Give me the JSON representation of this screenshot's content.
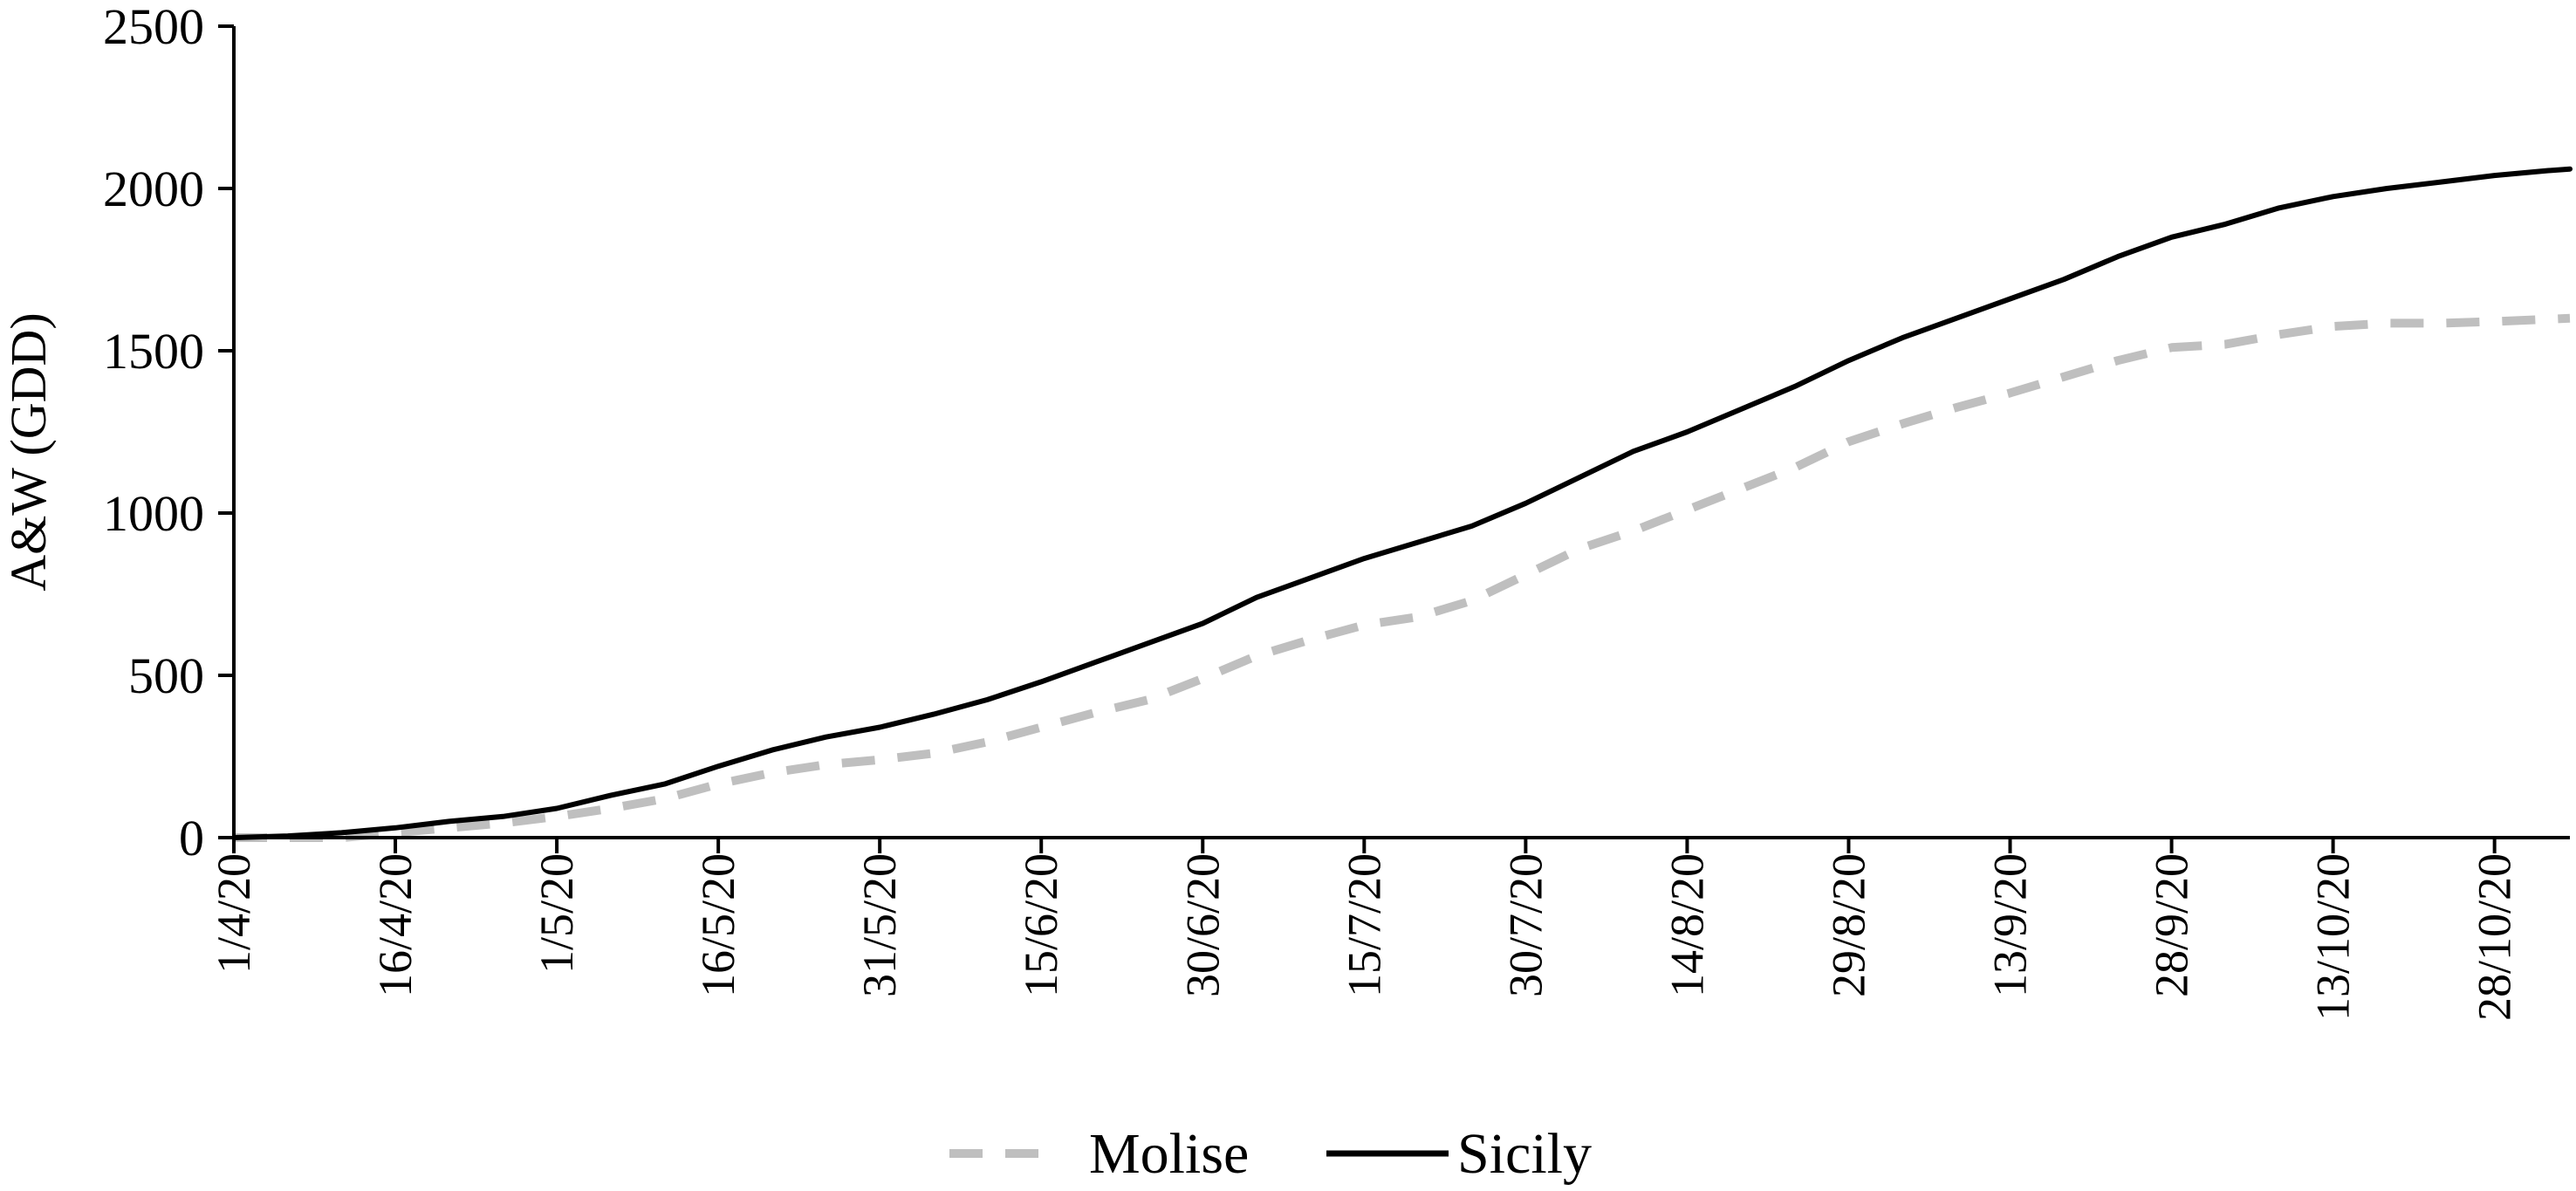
{
  "chart_data": {
    "type": "line",
    "title": "",
    "xlabel": "",
    "ylabel": "A&W (GDD)",
    "ylim": [
      0,
      2500
    ],
    "yticks": [
      "0",
      "500",
      "1000",
      "1500",
      "2000",
      "2500"
    ],
    "x_start": "1/4/20",
    "x_end": "4/11/20",
    "xticks": [
      "1/4/20",
      "16/4/20",
      "1/5/20",
      "16/5/20",
      "31/5/20",
      "15/6/20",
      "30/6/20",
      "15/7/20",
      "30/7/20",
      "14/8/20",
      "29/8/20",
      "13/9/20",
      "28/9/20",
      "13/10/20",
      "28/10/20"
    ],
    "grid": false,
    "legend_position": "bottom",
    "series": [
      {
        "name": "Molise",
        "style": "dashed",
        "color": "#bfbfbf",
        "x": [
          "1/4/20",
          "11/4/20",
          "16/4/20",
          "21/4/20",
          "26/4/20",
          "1/5/20",
          "6/5/20",
          "11/5/20",
          "16/5/20",
          "21/5/20",
          "26/5/20",
          "31/5/20",
          "5/6/20",
          "10/6/20",
          "15/6/20",
          "20/6/20",
          "25/6/20",
          "30/6/20",
          "5/7/20",
          "10/7/20",
          "15/7/20",
          "20/7/20",
          "25/7/20",
          "30/7/20",
          "4/8/20",
          "9/8/20",
          "14/8/20",
          "19/8/20",
          "24/8/20",
          "29/8/20",
          "3/9/20",
          "8/9/20",
          "13/9/20",
          "18/9/20",
          "23/9/20",
          "28/9/20",
          "3/10/20",
          "8/10/20",
          "13/10/20",
          "18/10/20",
          "23/10/20",
          "28/10/20",
          "2/11/20",
          "4/11/20"
        ],
        "y": [
          0,
          0,
          15,
          30,
          45,
          65,
          90,
          120,
          165,
          200,
          225,
          240,
          260,
          295,
          340,
          385,
          425,
          490,
          560,
          610,
          655,
          680,
          730,
          810,
          890,
          945,
          1010,
          1075,
          1140,
          1220,
          1275,
          1325,
          1370,
          1420,
          1470,
          1510,
          1520,
          1550,
          1575,
          1585,
          1585,
          1590,
          1597,
          1600
        ]
      },
      {
        "name": "Sicily",
        "style": "solid",
        "color": "#000000",
        "x": [
          "1/4/20",
          "6/4/20",
          "11/4/20",
          "16/4/20",
          "21/4/20",
          "26/4/20",
          "1/5/20",
          "6/5/20",
          "11/5/20",
          "16/5/20",
          "21/5/20",
          "26/5/20",
          "31/5/20",
          "5/6/20",
          "10/6/20",
          "15/6/20",
          "20/6/20",
          "25/6/20",
          "30/6/20",
          "5/7/20",
          "10/7/20",
          "15/7/20",
          "20/7/20",
          "25/7/20",
          "30/7/20",
          "4/8/20",
          "9/8/20",
          "14/8/20",
          "19/8/20",
          "24/8/20",
          "29/8/20",
          "3/9/20",
          "8/9/20",
          "13/9/20",
          "18/9/20",
          "23/9/20",
          "28/9/20",
          "3/10/20",
          "8/10/20",
          "13/10/20",
          "18/10/20",
          "23/10/20",
          "28/10/20",
          "2/11/20",
          "4/11/20"
        ],
        "y": [
          0,
          5,
          15,
          30,
          50,
          65,
          90,
          130,
          165,
          220,
          270,
          310,
          340,
          380,
          425,
          480,
          540,
          600,
          660,
          740,
          800,
          860,
          910,
          960,
          1030,
          1110,
          1190,
          1250,
          1320,
          1390,
          1470,
          1540,
          1600,
          1660,
          1720,
          1790,
          1850,
          1890,
          1940,
          1975,
          2000,
          2020,
          2040,
          2055,
          2060
        ]
      }
    ]
  }
}
